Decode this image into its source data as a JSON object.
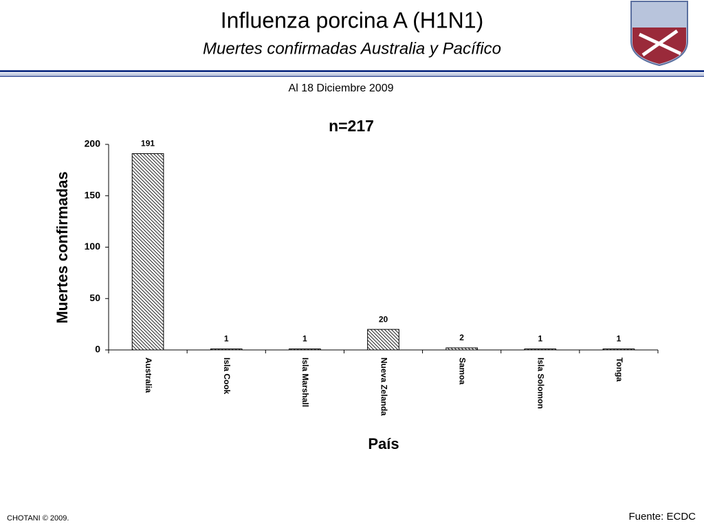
{
  "header": {
    "title": "Influenza porcina A (H1N1)",
    "subtitle": "Muertes confirmadas Australia y Pacífico",
    "date_note": "Al 18 Diciembre 2009"
  },
  "footer": {
    "credit": "CHOTANI © 2009.",
    "source": "Fuente: ECDC"
  },
  "chart_data": {
    "type": "bar",
    "title": "n=217",
    "y_label": "Muertes confirmadas",
    "x_label": "País",
    "categories": [
      "Australia",
      "Isla Cook",
      "Isla Marshall",
      "Nueva Zelanda",
      "Samoa",
      "Isla Solomon",
      "Tonga"
    ],
    "values": [
      191,
      1,
      1,
      20,
      2,
      1,
      1
    ],
    "color": "#000000",
    "ylim": [
      0,
      200
    ],
    "yticks": [
      0,
      50,
      100,
      150,
      200
    ],
    "grid": false
  }
}
